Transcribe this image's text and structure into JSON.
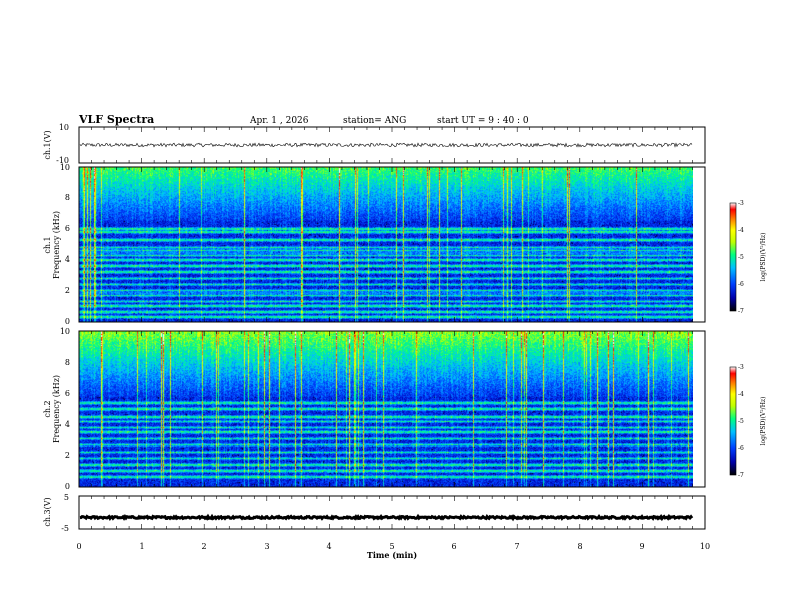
{
  "header": {
    "title": "VLF Spectra",
    "date": "Apr. 1  , 2026",
    "station": "station= ANG",
    "start_ut": "start  UT  =   9  : 40 : 0"
  },
  "chart_data": [
    {
      "type": "line",
      "panel": "ch1-waveform",
      "ylabel": "ch.1(V)",
      "ylim": [
        -10,
        10
      ],
      "yticks": [
        "10",
        "-10"
      ],
      "xlim": [
        0,
        10
      ],
      "level": 0,
      "noise_amplitude": 1
    },
    {
      "type": "heatmap",
      "panel": "ch1-spectrogram",
      "ylabel_1": "ch.1",
      "ylabel_2": "Frequency (kHz)",
      "ylim": [
        0,
        10
      ],
      "yticks": [
        "0",
        "2",
        "4",
        "6",
        "8",
        "10"
      ],
      "xlim": [
        0,
        9.85
      ],
      "colorbar": {
        "label": "log(PSD)(V²/Hz)",
        "range": [
          -7,
          -3
        ],
        "ticks": [
          "-3",
          "-4",
          "-5",
          "-6",
          "-7"
        ]
      },
      "bands_khz": [
        0.3,
        0.6,
        1.0,
        1.3,
        1.7,
        2.0,
        2.4,
        2.8,
        3.2,
        3.6,
        4.0,
        4.3,
        4.6,
        4.8,
        5.3,
        5.8,
        6.0
      ],
      "noisy_band_khz": [
        6.5,
        10
      ]
    },
    {
      "type": "heatmap",
      "panel": "ch2-spectrogram",
      "ylabel_1": "ch.2",
      "ylabel_2": "Frequency (kHz)",
      "ylim": [
        0,
        10
      ],
      "yticks": [
        "0",
        "2",
        "4",
        "6",
        "8",
        "10"
      ],
      "xlim": [
        0,
        9.85
      ],
      "colorbar": {
        "label": "log(PSD)(V²/Hz)",
        "range": [
          -7,
          -3
        ],
        "ticks": [
          "-3",
          "-4",
          "-5",
          "-6",
          "-7"
        ]
      },
      "bands_khz": [
        0.6,
        1.0,
        1.4,
        1.8,
        2.2,
        2.7,
        3.1,
        3.5,
        3.8,
        4.2,
        4.5,
        5.0,
        5.4
      ],
      "noisy_band_khz": [
        5.8,
        10
      ]
    },
    {
      "type": "line",
      "panel": "ch3-waveform",
      "ylabel": "ch.3(V)",
      "ylim": [
        -5,
        5
      ],
      "yticks": [
        "5",
        "-5"
      ],
      "xlim": [
        0,
        10
      ],
      "level": -1.5,
      "noise_amplitude": 0.3
    }
  ],
  "xaxis": {
    "label": "Time  (min)",
    "ticks": [
      "0",
      "1",
      "2",
      "3",
      "4",
      "5",
      "6",
      "7",
      "8",
      "9",
      "10"
    ],
    "range": [
      0,
      10
    ]
  },
  "colors": {
    "cmap": [
      "#000000",
      "#0000aa",
      "#0040ff",
      "#00c0ff",
      "#00ff80",
      "#c0ff00",
      "#ffff00",
      "#ff8000",
      "#ff0000",
      "#ffffff"
    ]
  }
}
